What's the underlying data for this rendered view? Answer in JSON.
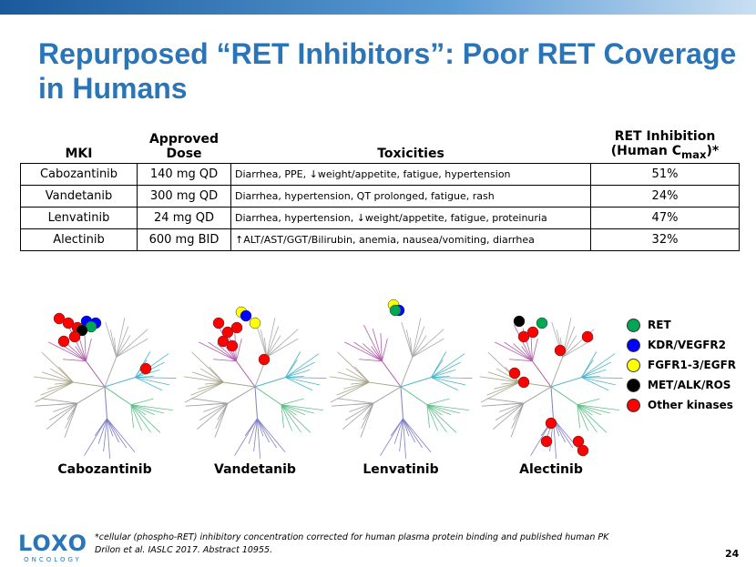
{
  "header": {
    "title_lines": [
      "Repurposed “RET Inhibitors”: Poor RET Coverage",
      "in Humans"
    ]
  },
  "table": {
    "headers": [
      "MKI",
      [
        "Approved",
        "Dose"
      ],
      "Toxicities",
      [
        "RET Inhibition",
        "(Human C",
        "max",
        ")*"
      ]
    ],
    "rows": [
      [
        "Cabozantinib",
        "140 mg QD",
        "Diarrhea, PPE, ↓weight/appetite, fatigue, hypertension",
        "51%"
      ],
      [
        "Vandetanib",
        "300 mg QD",
        "Diarrhea, hypertension, QT prolonged, fatigue, rash",
        "24%"
      ],
      [
        "Lenvatinib",
        "24 mg QD",
        "Diarrhea, hypertension, ↓weight/appetite, fatigue, proteinuria",
        "47%"
      ],
      [
        "Alectinib",
        "600 mg BID",
        "↑ALT/AST/GGT/Bilirubin, anemia, nausea/vomiting, diarrhea",
        "32%"
      ]
    ]
  },
  "trees": [
    "Cabozantinib",
    "Vandetanib",
    "Lenvatinib",
    "Alectinib"
  ],
  "legend": [
    {
      "label": "RET",
      "color": "#00a651"
    },
    {
      "label": "KDR/VEGFR2",
      "color": "#0000ff"
    },
    {
      "label": "FGFR1-3/EGFR",
      "color": "#ffff00"
    },
    {
      "label": "MET/ALK/ROS",
      "color": "#000000"
    },
    {
      "label": "Other kinases",
      "color": "#ff0000"
    }
  ],
  "footnote": [
    "*cellular (phospho-RET) inhibitory concentration corrected for human plasma protein binding and published human PK",
    "Drilon et al. IASLC 2017. Abstract 10955."
  ],
  "logo": {
    "name": "LOXO",
    "sub": "ONCOLOGY"
  },
  "page_number": "24"
}
